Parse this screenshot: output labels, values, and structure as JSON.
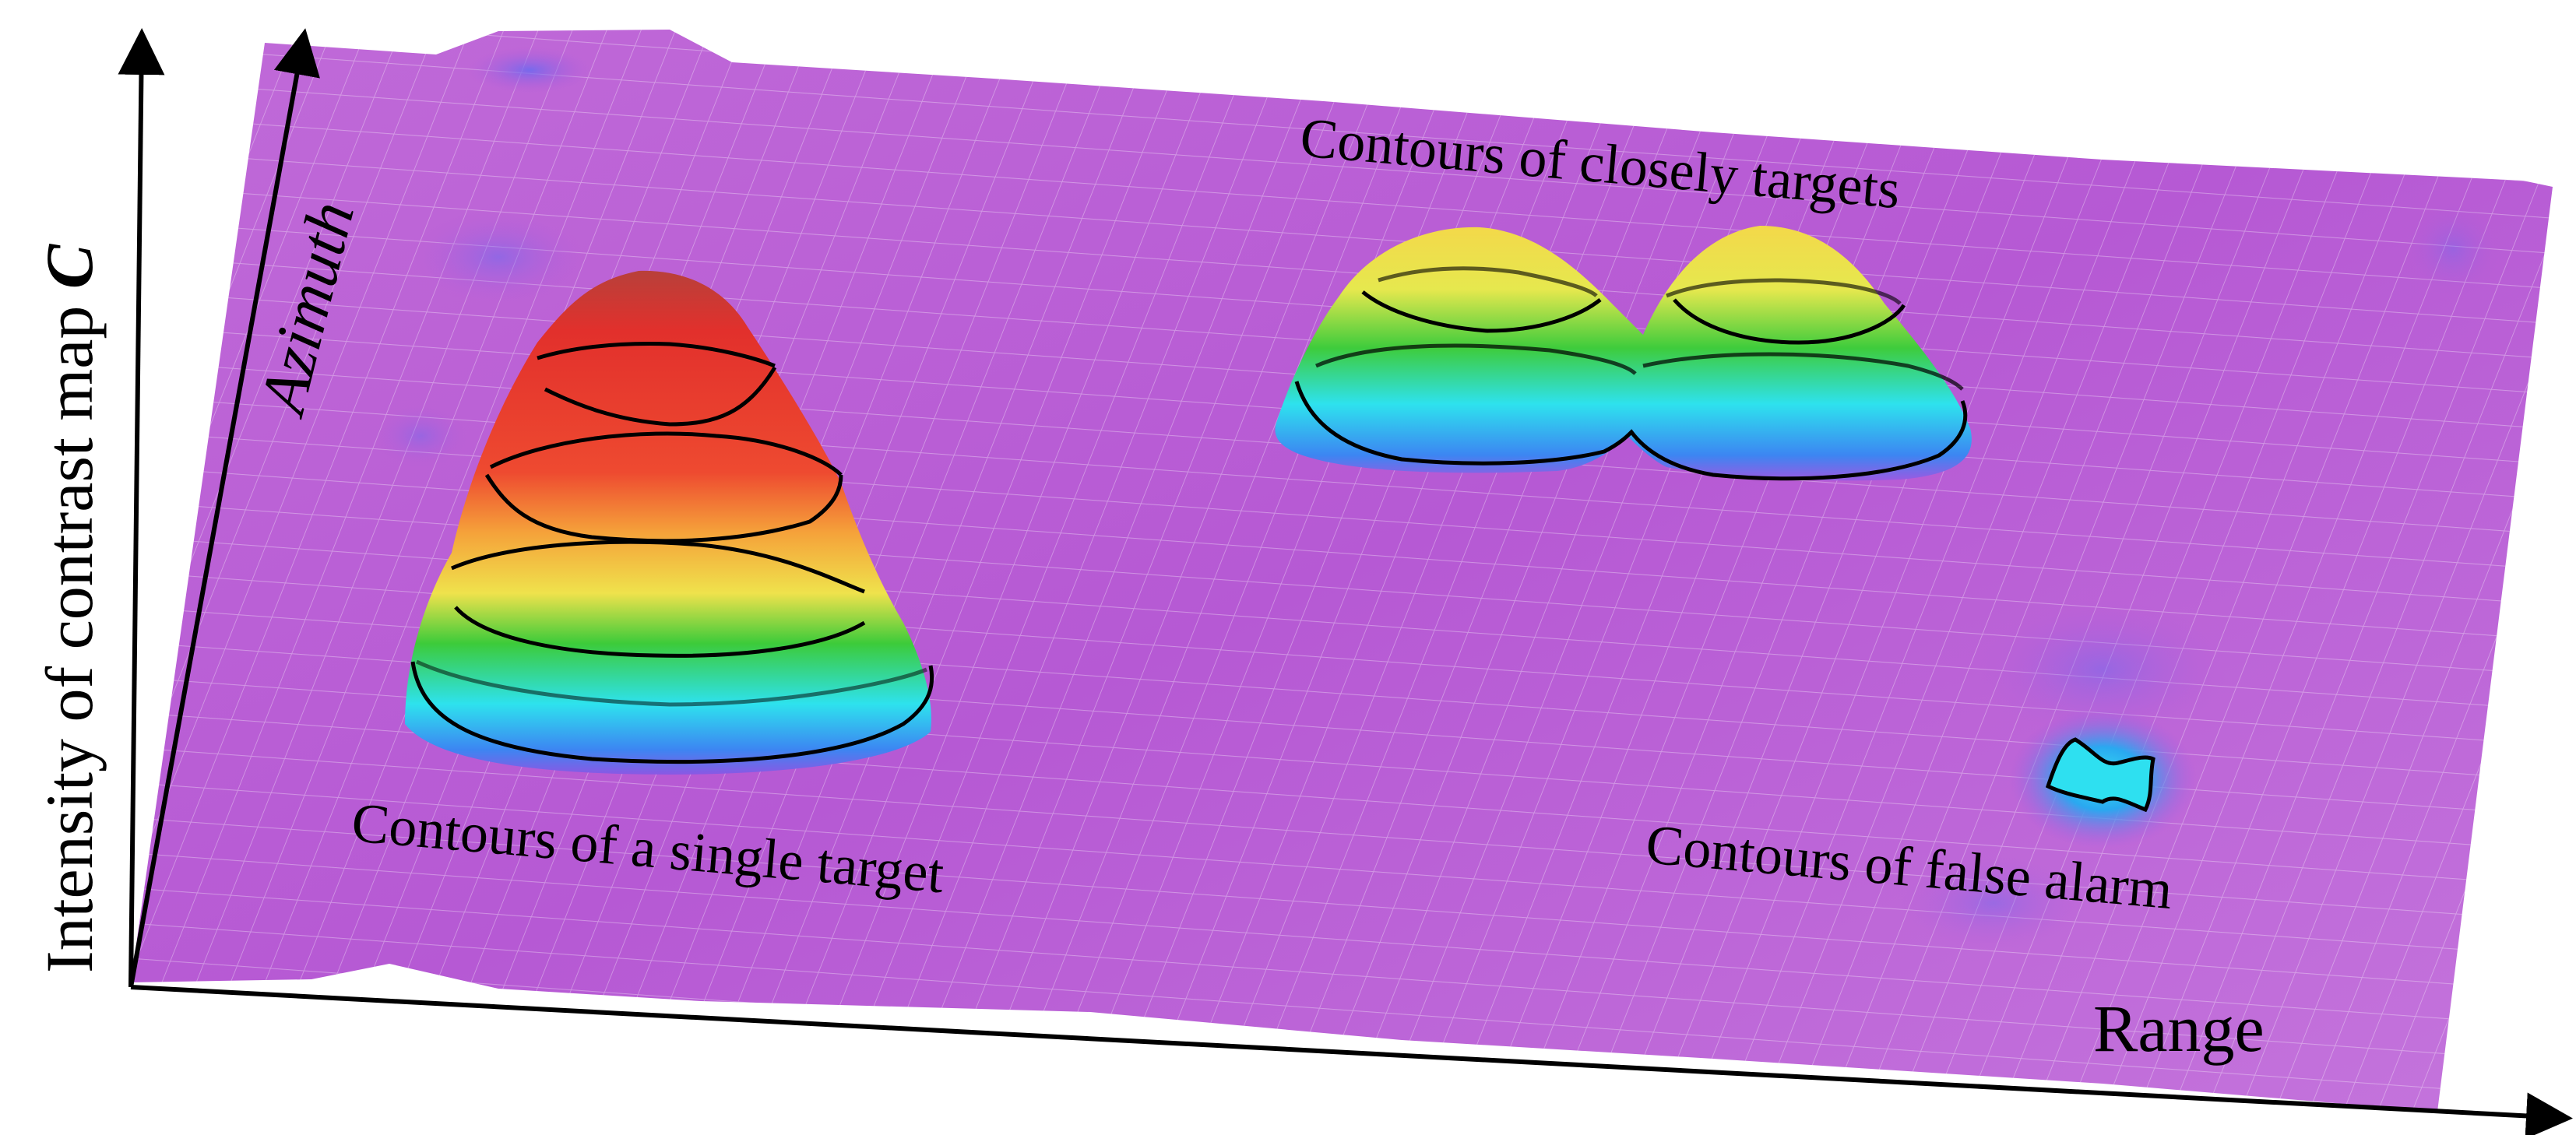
{
  "axes": {
    "vertical": {
      "text": "Intensity of contrast map ",
      "symbol": "C"
    },
    "azimuth": "Azimuth",
    "range": "Range"
  },
  "annotations": {
    "closely_targets": "Contours of closely targets",
    "single_target": "Contours of a single target",
    "false_alarm": "Contours of false alarm"
  },
  "colors": {
    "background_surface": "#b85ad6",
    "surface_light": "#c874e0",
    "peak_red": "#e8302c",
    "peak_orange": "#f5a23a",
    "peak_yellow": "#f2e04a",
    "peak_green": "#34c83a",
    "peak_cyan": "#2ee0ee",
    "peak_blue": "#3c7cf0",
    "contour_line": "#000000"
  }
}
